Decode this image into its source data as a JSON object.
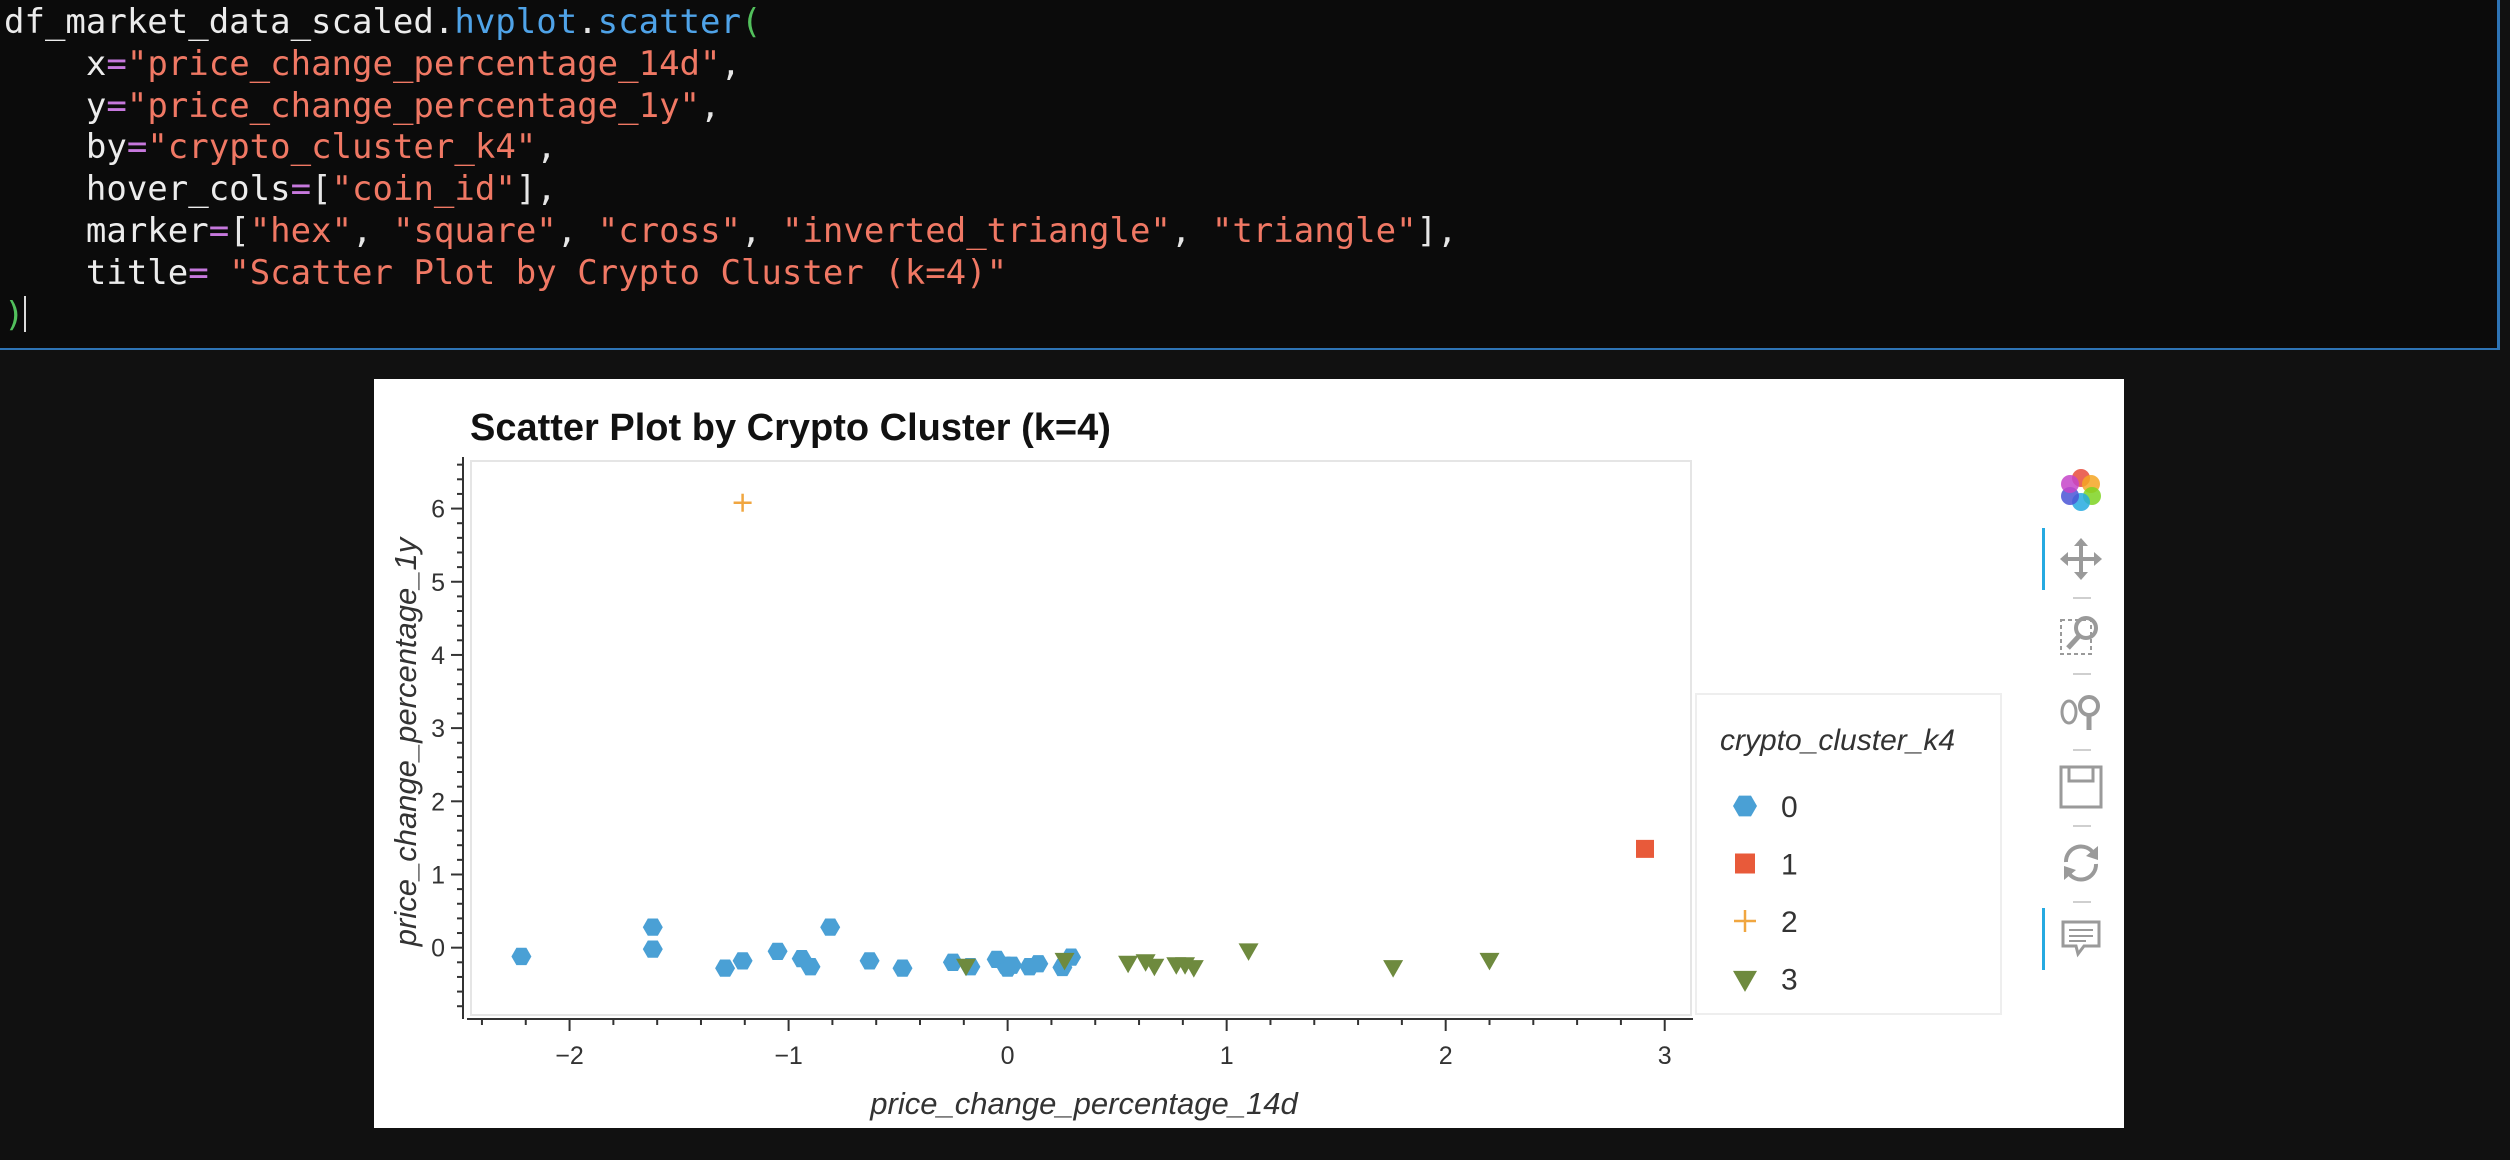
{
  "code": {
    "line1": {
      "obj": "df_market_data_scaled",
      "dot1": ".",
      "attr": "hvplot",
      "dot2": ".",
      "fn": "scatter",
      "paren": "("
    },
    "line2": {
      "indent": "    ",
      "kw": "x",
      "eq": "=",
      "val": "\"price_change_percentage_14d\"",
      "end": ","
    },
    "line3": {
      "indent": "    ",
      "kw": "y",
      "eq": "=",
      "val": "\"price_change_percentage_1y\"",
      "end": ","
    },
    "line4": {
      "indent": "    ",
      "kw": "by",
      "eq": "=",
      "val": "\"crypto_cluster_k4\"",
      "end": ","
    },
    "line5": {
      "indent": "    ",
      "kw": "hover_cols",
      "eq": "=",
      "open": "[",
      "val": "\"coin_id\"",
      "close": "],"
    },
    "line6": {
      "indent": "    ",
      "kw": "marker",
      "eq": "=",
      "open": "[",
      "items": [
        "\"hex\"",
        ", ",
        "\"square\"",
        ", ",
        "\"cross\"",
        ", ",
        "\"inverted_triangle\"",
        ", ",
        "\"triangle\""
      ],
      "close": "],"
    },
    "line7": {
      "indent": "    ",
      "kw": "title",
      "eq": "=",
      "sp": " ",
      "val": "\"Scatter Plot by Crypto Cluster (k=4)\""
    },
    "line8": {
      "paren": ")"
    }
  },
  "colors": {
    "cluster0": "#4aa0d5",
    "cluster1": "#e85a3a",
    "cluster2": "#f0a640",
    "cluster3": "#6e8a3e"
  },
  "chart_data": {
    "type": "scatter",
    "title": "Scatter Plot by Crypto Cluster (k=4)",
    "xlabel": "price_change_percentage_14d",
    "ylabel": "price_change_percentage_1y",
    "xlim": [
      -2.45,
      3.12
    ],
    "ylim": [
      -0.92,
      6.65
    ],
    "xticks": [
      -2,
      -1,
      0,
      1,
      2,
      3
    ],
    "yticks": [
      0,
      1,
      2,
      3,
      4,
      5,
      6
    ],
    "grid": false,
    "legend": {
      "title": "crypto_cluster_k4",
      "placement": "right"
    },
    "series": [
      {
        "name": "0",
        "marker": "hex",
        "x": [
          -2.22,
          -1.62,
          -1.62,
          -1.29,
          -1.21,
          -1.05,
          -0.94,
          -0.9,
          -0.81,
          -0.63,
          -0.48,
          -0.25,
          -0.17,
          -0.05,
          -0.01,
          0.0,
          0.02,
          0.1,
          0.14,
          0.25,
          0.29
        ],
        "y": [
          -0.12,
          0.28,
          -0.02,
          -0.28,
          -0.18,
          -0.05,
          -0.15,
          -0.26,
          0.28,
          -0.18,
          -0.28,
          -0.2,
          -0.26,
          -0.16,
          -0.24,
          -0.28,
          -0.24,
          -0.26,
          -0.22,
          -0.27,
          -0.13
        ]
      },
      {
        "name": "1",
        "marker": "square",
        "x": [
          2.91
        ],
        "y": [
          1.35
        ]
      },
      {
        "name": "2",
        "marker": "cross",
        "x": [
          -1.21
        ],
        "y": [
          6.08
        ]
      },
      {
        "name": "3",
        "marker": "inverted_triangle",
        "x": [
          -0.19,
          0.26,
          0.55,
          0.63,
          0.67,
          0.77,
          0.81,
          0.85,
          1.1,
          1.76,
          2.2
        ],
        "y": [
          -0.26,
          -0.18,
          -0.22,
          -0.2,
          -0.26,
          -0.24,
          -0.24,
          -0.28,
          -0.05,
          -0.28,
          -0.18
        ]
      }
    ]
  },
  "toolbar": {
    "tools": [
      "bokeh-logo-icon",
      "pan-icon",
      "box-zoom-icon",
      "wheel-zoom-icon",
      "save-icon",
      "reset-icon",
      "hover-icon"
    ]
  }
}
